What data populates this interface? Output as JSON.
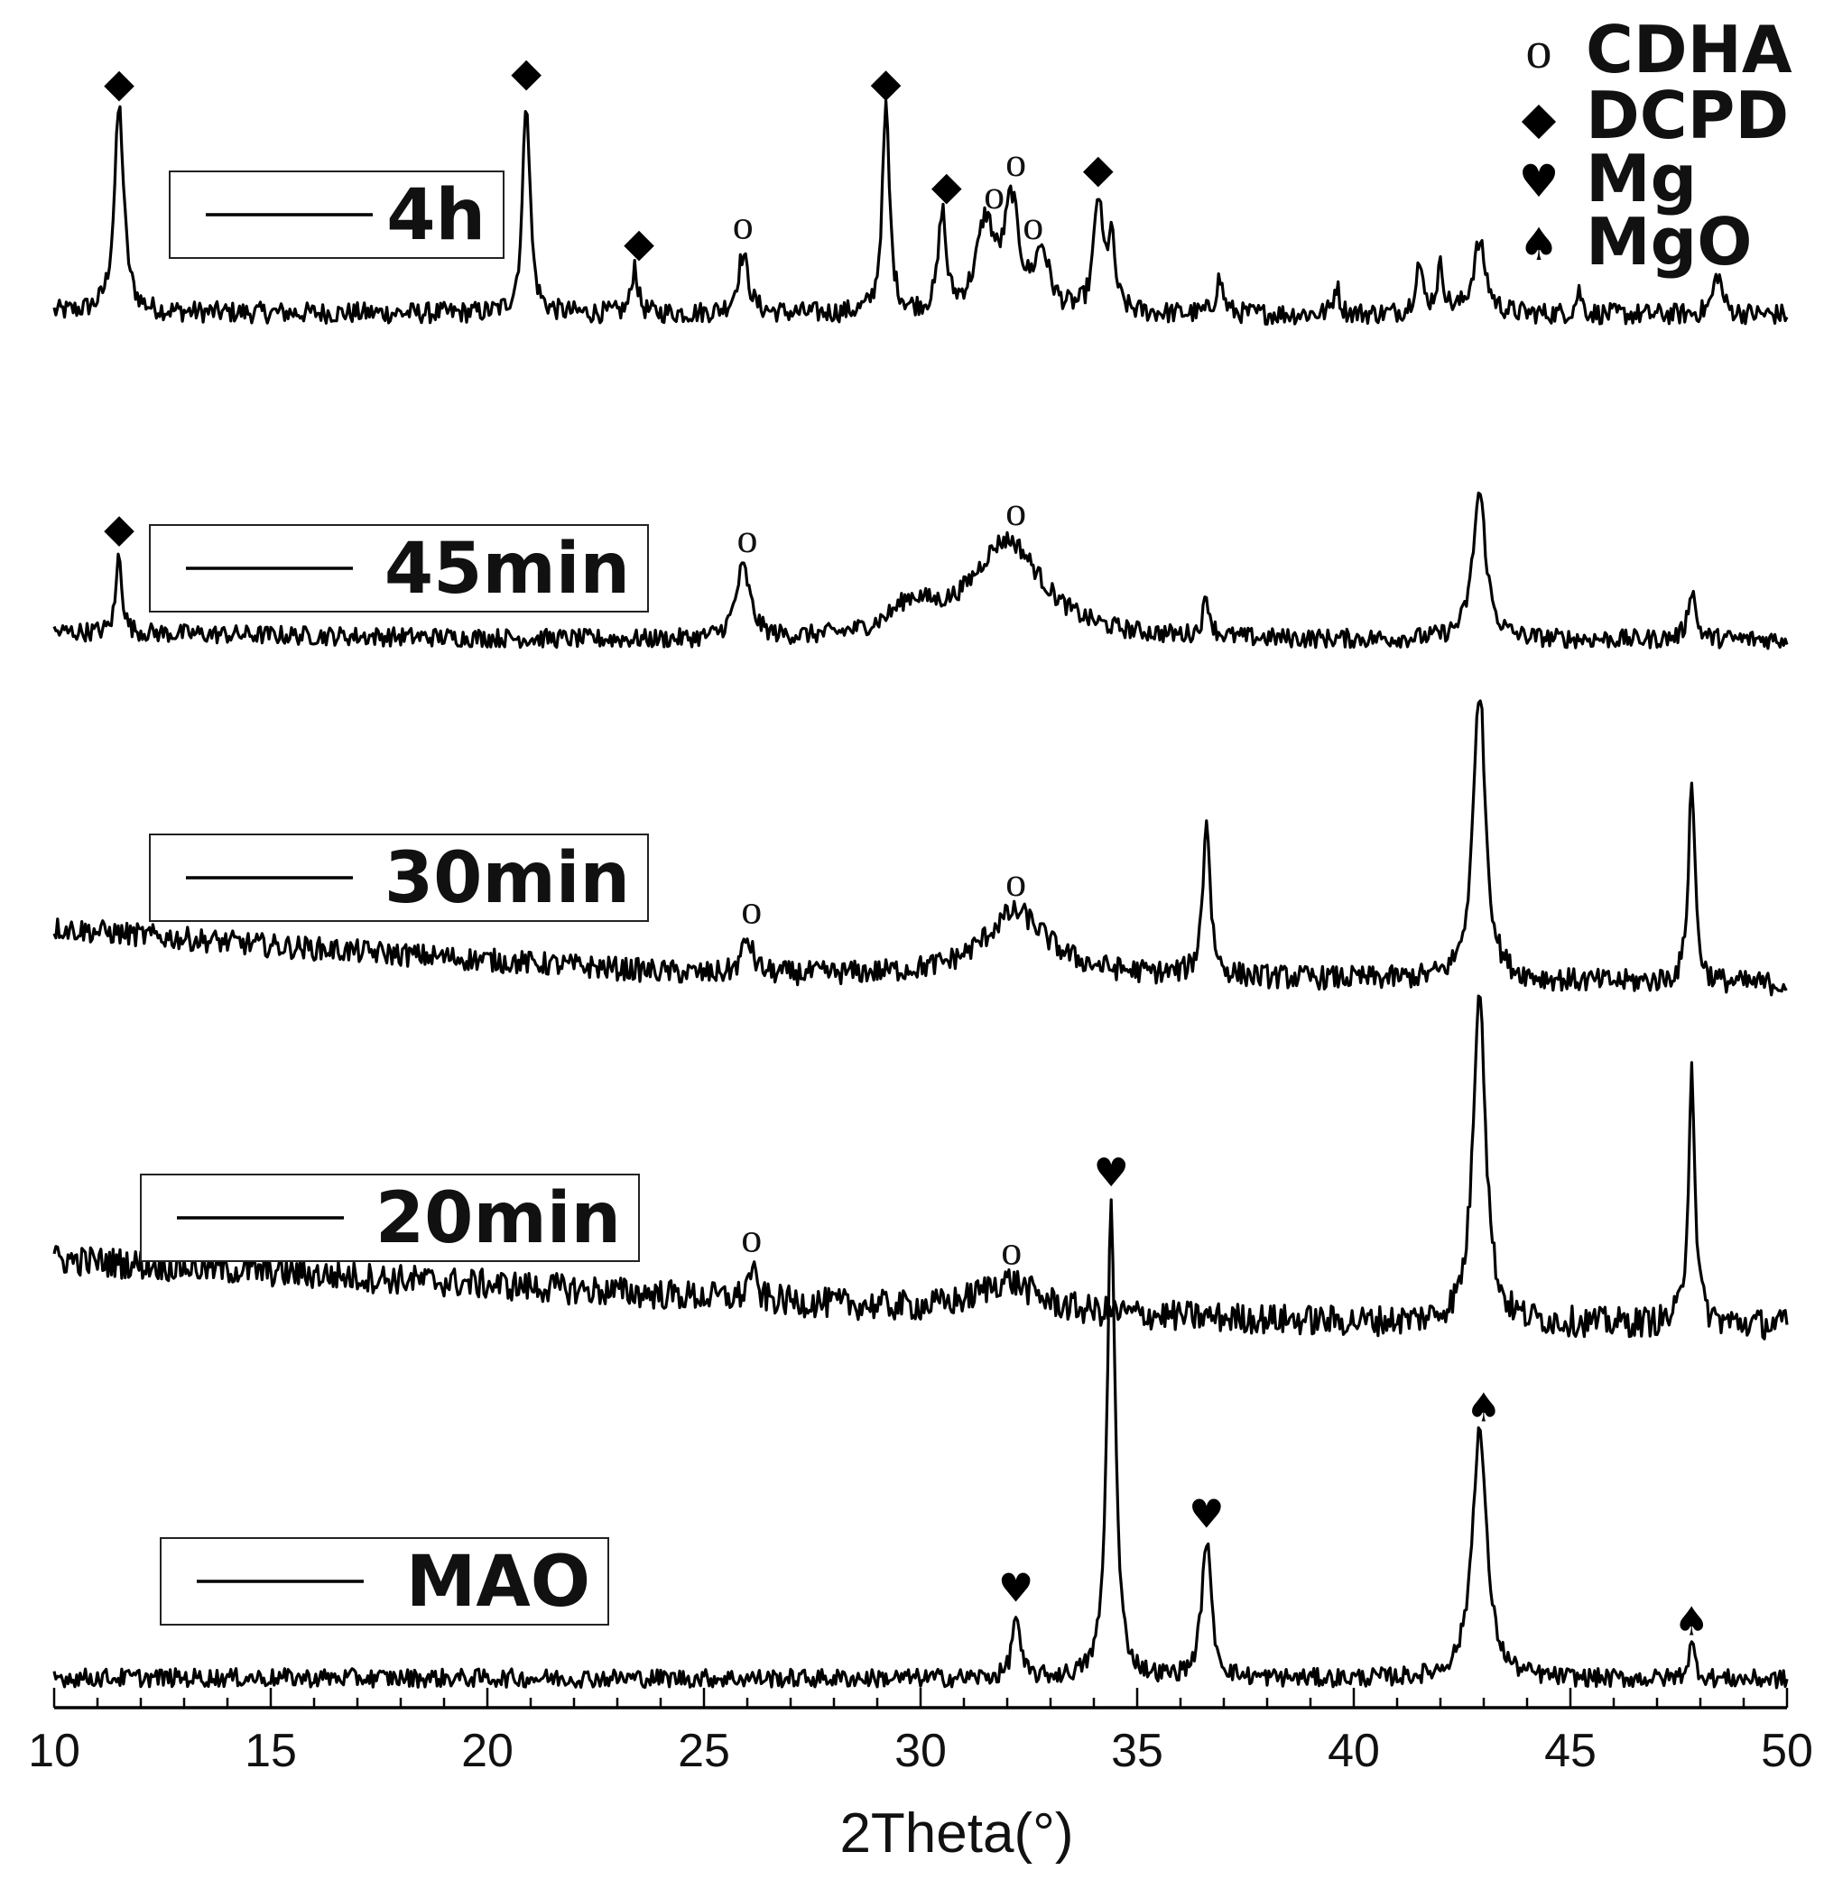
{
  "chart_data": {
    "type": "line",
    "title": "",
    "xlabel": "2Theta(°)",
    "ylabel": "",
    "xlim": [
      10,
      50
    ],
    "xticks": [
      "10",
      "15",
      "20",
      "25",
      "30",
      "35",
      "40",
      "45",
      "50"
    ],
    "grid": false,
    "stacked_offset": true,
    "legend": {
      "placement": "top-right",
      "entries": [
        {
          "symbol": "circle",
          "glyph": "o",
          "label": "CDHA"
        },
        {
          "symbol": "diamond",
          "glyph": "◆",
          "label": "DCPD"
        },
        {
          "symbol": "heart",
          "glyph": "♥",
          "label": "Mg"
        },
        {
          "symbol": "spade",
          "glyph": "♠",
          "label": "MgO"
        }
      ]
    },
    "series": [
      {
        "name": "4h",
        "noise": 0.09,
        "baseline": [
          [
            10,
            0.12
          ],
          [
            30,
            0.1
          ],
          [
            50,
            0.1
          ]
        ],
        "peaks": [
          {
            "x": 11.5,
            "h": 1.75,
            "w": 0.13
          },
          {
            "x": 20.9,
            "h": 1.85,
            "w": 0.1
          },
          {
            "x": 23.4,
            "h": 0.42,
            "w": 0.08
          },
          {
            "x": 25.9,
            "h": 0.5,
            "w": 0.15
          },
          {
            "x": 29.2,
            "h": 1.75,
            "w": 0.1
          },
          {
            "x": 30.5,
            "h": 0.85,
            "w": 0.1
          },
          {
            "x": 31.5,
            "h": 0.75,
            "w": 0.25
          },
          {
            "x": 32.1,
            "h": 0.9,
            "w": 0.2
          },
          {
            "x": 32.8,
            "h": 0.5,
            "w": 0.2
          },
          {
            "x": 34.1,
            "h": 0.95,
            "w": 0.12
          },
          {
            "x": 34.4,
            "h": 0.6,
            "w": 0.1
          },
          {
            "x": 36.9,
            "h": 0.3,
            "w": 0.1
          },
          {
            "x": 39.6,
            "h": 0.25,
            "w": 0.08
          },
          {
            "x": 41.5,
            "h": 0.42,
            "w": 0.1
          },
          {
            "x": 42.0,
            "h": 0.38,
            "w": 0.1
          },
          {
            "x": 42.9,
            "h": 0.6,
            "w": 0.18
          },
          {
            "x": 45.2,
            "h": 0.2,
            "w": 0.08
          },
          {
            "x": 48.4,
            "h": 0.35,
            "w": 0.12
          }
        ],
        "markers": [
          {
            "x": 11.5,
            "symbol": "diamond"
          },
          {
            "x": 20.9,
            "symbol": "diamond"
          },
          {
            "x": 23.5,
            "symbol": "diamond"
          },
          {
            "x": 25.9,
            "symbol": "circle"
          },
          {
            "x": 29.2,
            "symbol": "diamond"
          },
          {
            "x": 30.6,
            "symbol": "diamond"
          },
          {
            "x": 31.7,
            "symbol": "circle"
          },
          {
            "x": 32.2,
            "symbol": "circle"
          },
          {
            "x": 32.6,
            "symbol": "circle"
          },
          {
            "x": 34.1,
            "symbol": "diamond"
          }
        ]
      },
      {
        "name": "45min",
        "noise": 0.1,
        "baseline": [
          [
            10,
            0.2
          ],
          [
            25,
            0.1
          ],
          [
            50,
            0.12
          ]
        ],
        "peaks": [
          {
            "x": 11.5,
            "h": 0.85,
            "w": 0.08
          },
          {
            "x": 25.9,
            "h": 0.75,
            "w": 0.2
          },
          {
            "x": 29.8,
            "h": 0.3,
            "w": 0.6
          },
          {
            "x": 32.0,
            "h": 1.05,
            "w": 1.0
          },
          {
            "x": 36.6,
            "h": 0.4,
            "w": 0.1
          },
          {
            "x": 42.9,
            "h": 1.55,
            "w": 0.18
          },
          {
            "x": 47.8,
            "h": 0.55,
            "w": 0.1
          }
        ],
        "markers": [
          {
            "x": 11.5,
            "symbol": "diamond"
          },
          {
            "x": 26.0,
            "symbol": "circle"
          },
          {
            "x": 32.2,
            "symbol": "circle"
          }
        ]
      },
      {
        "name": "30min",
        "noise": 0.1,
        "baseline": [
          [
            10,
            0.6
          ],
          [
            15,
            0.45
          ],
          [
            25,
            0.2
          ],
          [
            35,
            0.18
          ],
          [
            50,
            0.12
          ]
        ],
        "peaks": [
          {
            "x": 26.0,
            "h": 0.3,
            "w": 0.15
          },
          {
            "x": 32.2,
            "h": 0.55,
            "w": 0.9
          },
          {
            "x": 36.6,
            "h": 1.35,
            "w": 0.1
          },
          {
            "x": 42.9,
            "h": 2.5,
            "w": 0.17
          },
          {
            "x": 47.8,
            "h": 1.75,
            "w": 0.09
          }
        ],
        "markers": [
          {
            "x": 26.1,
            "symbol": "circle"
          },
          {
            "x": 32.2,
            "symbol": "circle"
          }
        ]
      },
      {
        "name": "20min",
        "noise": 0.12,
        "baseline": [
          [
            10,
            0.6
          ],
          [
            20,
            0.4
          ],
          [
            30,
            0.2
          ],
          [
            40,
            0.1
          ],
          [
            50,
            0.08
          ]
        ],
        "peaks": [
          {
            "x": 26.1,
            "h": 0.25,
            "w": 0.1
          },
          {
            "x": 32.0,
            "h": 0.25,
            "w": 0.8
          },
          {
            "x": 42.9,
            "h": 2.7,
            "w": 0.17
          },
          {
            "x": 47.8,
            "h": 2.05,
            "w": 0.09
          }
        ],
        "markers": [
          {
            "x": 26.1,
            "symbol": "circle"
          },
          {
            "x": 32.1,
            "symbol": "circle"
          }
        ]
      },
      {
        "name": "MAO",
        "noise": 0.05,
        "baseline": [
          [
            10,
            0.05
          ],
          [
            50,
            0.04
          ]
        ],
        "peaks": [
          {
            "x": 32.2,
            "h": 0.35,
            "w": 0.1
          },
          {
            "x": 34.4,
            "h": 2.6,
            "w": 0.11
          },
          {
            "x": 36.6,
            "h": 0.75,
            "w": 0.13
          },
          {
            "x": 42.9,
            "h": 1.35,
            "w": 0.2
          },
          {
            "x": 47.8,
            "h": 0.18,
            "w": 0.1
          }
        ],
        "markers": [
          {
            "x": 32.2,
            "symbol": "heart"
          },
          {
            "x": 34.4,
            "symbol": "heart"
          },
          {
            "x": 36.6,
            "symbol": "heart"
          },
          {
            "x": 43.0,
            "symbol": "spade"
          },
          {
            "x": 47.8,
            "symbol": "spade"
          }
        ]
      }
    ]
  }
}
